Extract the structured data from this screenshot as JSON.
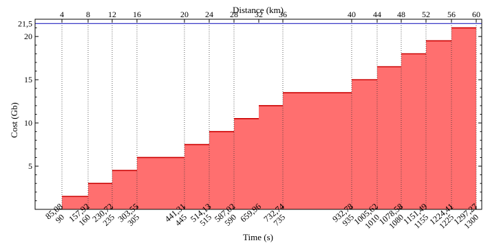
{
  "chart_data": {
    "type": "area",
    "title": "",
    "xlabel": "Time (s)",
    "ylabel": "Cost (Gb)",
    "x2label": "Distance (km)",
    "xlim": [
      0,
      1300
    ],
    "ylim": [
      0,
      22
    ],
    "grid": "dotted vertical at x ticks",
    "x_ticks": [
      90,
      160,
      235,
      305,
      445,
      515,
      590,
      735,
      935,
      1010,
      1080,
      1155,
      1225,
      1300
    ],
    "x2_ticks": [
      {
        "label": "4",
        "x": 90
      },
      {
        "label": "8",
        "x": 160
      },
      {
        "label": "12",
        "x": 235
      },
      {
        "label": "16",
        "x": 305
      },
      {
        "label": "20",
        "x": 445
      },
      {
        "label": "24",
        "x": 515
      },
      {
        "label": "28",
        "x": 590
      },
      {
        "label": "32",
        "x": 660
      },
      {
        "label": "36",
        "x": 735
      },
      {
        "label": "40",
        "x": 935
      },
      {
        "label": "44",
        "x": 1010
      },
      {
        "label": "48",
        "x": 1080
      },
      {
        "label": "52",
        "x": 1155
      },
      {
        "label": "56",
        "x": 1225
      },
      {
        "label": "60",
        "x": 1300
      }
    ],
    "y_ticks": [
      "5",
      "10",
      "15",
      "20"
    ],
    "y_ticks_values": [
      5,
      10,
      15,
      20
    ],
    "reference_line": {
      "value": 21.5,
      "label": "21,5",
      "color": "#2020c0"
    },
    "fill_color": "#ff6f6f",
    "line_color": "#cc0000",
    "steps": [
      {
        "x_start": 90,
        "x_end": 160,
        "y": 1.5
      },
      {
        "x_start": 160,
        "x_end": 235,
        "y": 3.0
      },
      {
        "x_start": 235,
        "x_end": 305,
        "y": 4.5
      },
      {
        "x_start": 305,
        "x_end": 445,
        "y": 6.0
      },
      {
        "x_start": 445,
        "x_end": 515,
        "y": 7.5
      },
      {
        "x_start": 515,
        "x_end": 590,
        "y": 9.0
      },
      {
        "x_start": 590,
        "x_end": 660,
        "y": 10.5
      },
      {
        "x_start": 660,
        "x_end": 735,
        "y": 12.0
      },
      {
        "x_start": 735,
        "x_end": 935,
        "y": 13.5
      },
      {
        "x_start": 935,
        "x_end": 1010,
        "y": 15.0
      },
      {
        "x_start": 1010,
        "x_end": 1080,
        "y": 16.5
      },
      {
        "x_start": 1080,
        "x_end": 1155,
        "y": 18.0
      },
      {
        "x_start": 1155,
        "x_end": 1225,
        "y": 19.5
      },
      {
        "x_start": 1225,
        "x_end": 1300,
        "y": 21.0
      }
    ],
    "annotations": [
      {
        "text": "85,08",
        "x": 85.08
      },
      {
        "text": "157,92",
        "x": 157.92
      },
      {
        "text": "230,72",
        "x": 230.72
      },
      {
        "text": "303,55",
        "x": 303.55
      },
      {
        "text": "441,31",
        "x": 441.31
      },
      {
        "text": "514,13",
        "x": 514.13
      },
      {
        "text": "587,02",
        "x": 587.02
      },
      {
        "text": "659,96",
        "x": 659.96
      },
      {
        "text": "732,74",
        "x": 732.74
      },
      {
        "text": "932,78",
        "x": 932.78
      },
      {
        "text": "1005,62",
        "x": 1005.62
      },
      {
        "text": "1078,58",
        "x": 1078.58
      },
      {
        "text": "1151,49",
        "x": 1151.49
      },
      {
        "text": "1224,41",
        "x": 1224.41
      },
      {
        "text": "1297,27",
        "x": 1297.27
      }
    ]
  }
}
